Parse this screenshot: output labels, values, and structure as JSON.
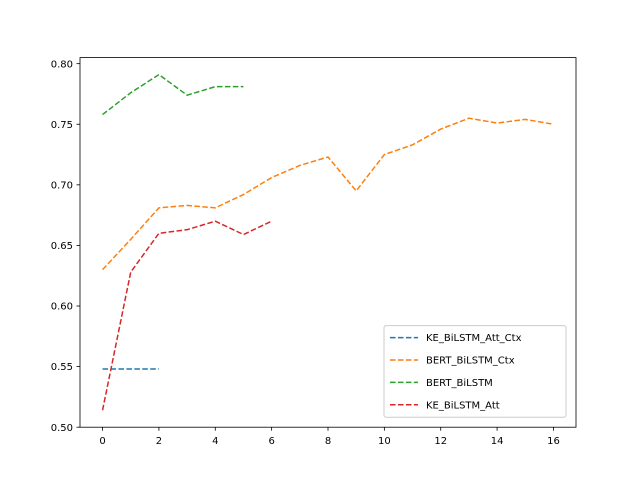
{
  "chart_data": {
    "type": "line",
    "title": "",
    "xlabel": "",
    "ylabel": "",
    "xlim": [
      -0.8,
      16.8
    ],
    "ylim": [
      0.5,
      0.805
    ],
    "x_ticks": [
      0,
      2,
      4,
      6,
      8,
      10,
      12,
      14,
      16
    ],
    "x_tick_labels": [
      "0",
      "2",
      "4",
      "6",
      "8",
      "10",
      "12",
      "14",
      "16"
    ],
    "y_ticks": [
      0.5,
      0.55,
      0.6,
      0.65,
      0.7,
      0.75,
      0.8
    ],
    "y_tick_labels": [
      "0.50",
      "0.55",
      "0.60",
      "0.65",
      "0.70",
      "0.75",
      "0.80"
    ],
    "grid": false,
    "legend_position": "lower-right",
    "line_style": "dashed",
    "series": [
      {
        "name": "KE_BiLSTM_Att_Ctx",
        "color": "#1f77b4",
        "x": [
          0,
          1,
          2
        ],
        "y": [
          0.548,
          0.548,
          0.548
        ]
      },
      {
        "name": "BERT_BiLSTM_Ctx",
        "color": "#ff7f0e",
        "x": [
          0,
          1,
          2,
          3,
          4,
          5,
          6,
          7,
          8,
          9,
          10,
          11,
          12,
          13,
          14,
          15,
          16
        ],
        "y": [
          0.63,
          0.655,
          0.681,
          0.683,
          0.681,
          0.692,
          0.706,
          0.716,
          0.723,
          0.695,
          0.725,
          0.733,
          0.746,
          0.755,
          0.751,
          0.754,
          0.75
        ]
      },
      {
        "name": "BERT_BiLSTM",
        "color": "#2ca02c",
        "x": [
          0,
          1,
          2,
          3,
          4,
          5
        ],
        "y": [
          0.758,
          0.776,
          0.791,
          0.774,
          0.781,
          0.781
        ]
      },
      {
        "name": "KE_BiLSTM_Att",
        "color": "#d62728",
        "x": [
          0,
          1,
          2,
          3,
          4,
          5,
          6
        ],
        "y": [
          0.514,
          0.628,
          0.66,
          0.663,
          0.67,
          0.659,
          0.67
        ]
      }
    ]
  }
}
